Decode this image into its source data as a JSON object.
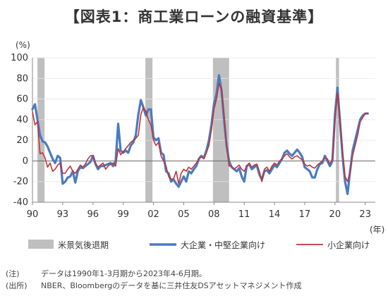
{
  "title": "【図表1：商工業ローンの融資基準】",
  "notes": [
    {
      "tag": "(注)",
      "text": "データは1990年1-3月期から2023年4-6月期。"
    },
    {
      "tag": "(出所)",
      "text": "NBER、Bloombergのデータを基に三井住友DSアセットマネジメント作成"
    }
  ],
  "colors": {
    "large": "#4a7bbf",
    "small": "#c0333a",
    "recession": "#bfbfbf"
  },
  "chart_data": {
    "type": "line",
    "y_unit": "(%)",
    "x_unit": "(年)",
    "ylim": [
      -40,
      100
    ],
    "yticks": [
      -40,
      -20,
      0,
      20,
      40,
      60,
      80,
      100
    ],
    "xlim": [
      1990.0,
      2024.0
    ],
    "xticks": [
      {
        "label": "90",
        "x": 1990.0
      },
      {
        "label": "93",
        "x": 1993.0
      },
      {
        "label": "96",
        "x": 1996.0
      },
      {
        "label": "99",
        "x": 1999.0
      },
      {
        "label": "02",
        "x": 2002.0
      },
      {
        "label": "05",
        "x": 2005.0
      },
      {
        "label": "08",
        "x": 2008.0
      },
      {
        "label": "11",
        "x": 2011.0
      },
      {
        "label": "14",
        "x": 2014.0
      },
      {
        "label": "17",
        "x": 2017.0
      },
      {
        "label": "20",
        "x": 2020.0
      },
      {
        "label": "23",
        "x": 2023.0
      }
    ],
    "recessions": [
      {
        "name": "1990-1991",
        "start": 1990.5,
        "end": 1991.2
      },
      {
        "name": "2001",
        "start": 2001.2,
        "end": 2001.9
      },
      {
        "name": "2007-2009",
        "start": 2007.9,
        "end": 2009.5
      },
      {
        "name": "2020",
        "start": 2020.1,
        "end": 2020.4
      }
    ],
    "legend": {
      "recession": "米景気後退期",
      "large": "大企業・中堅企業向け",
      "small": "小企業向け"
    },
    "series": [
      {
        "key": "large",
        "name": "大企業・中堅企業向け",
        "points": [
          [
            1990.0,
            50
          ],
          [
            1990.25,
            55
          ],
          [
            1990.5,
            40
          ],
          [
            1990.75,
            25
          ],
          [
            1991.0,
            19
          ],
          [
            1991.25,
            18
          ],
          [
            1991.5,
            14
          ],
          [
            1991.75,
            8
          ],
          [
            1992.0,
            2
          ],
          [
            1992.25,
            -2
          ],
          [
            1992.5,
            5
          ],
          [
            1992.75,
            3
          ],
          [
            1993.0,
            -22
          ],
          [
            1993.25,
            -20
          ],
          [
            1993.5,
            -16
          ],
          [
            1993.75,
            -15
          ],
          [
            1994.0,
            -10
          ],
          [
            1994.25,
            -21
          ],
          [
            1994.5,
            -10
          ],
          [
            1994.75,
            -6
          ],
          [
            1995.0,
            -7
          ],
          [
            1995.25,
            -5
          ],
          [
            1995.5,
            -3
          ],
          [
            1995.75,
            -1
          ],
          [
            1996.0,
            5
          ],
          [
            1996.25,
            -3
          ],
          [
            1996.5,
            -8
          ],
          [
            1996.75,
            -5
          ],
          [
            1997.0,
            -5
          ],
          [
            1997.25,
            -4
          ],
          [
            1997.5,
            -3
          ],
          [
            1997.75,
            -2
          ],
          [
            1998.0,
            -5
          ],
          [
            1998.25,
            0
          ],
          [
            1998.5,
            36
          ],
          [
            1998.75,
            10
          ],
          [
            1999.0,
            8
          ],
          [
            1999.25,
            10
          ],
          [
            1999.5,
            8
          ],
          [
            1999.75,
            15
          ],
          [
            2000.0,
            18
          ],
          [
            2000.25,
            25
          ],
          [
            2000.5,
            45
          ],
          [
            2000.75,
            59
          ],
          [
            2001.0,
            52
          ],
          [
            2001.25,
            44
          ],
          [
            2001.5,
            50
          ],
          [
            2001.75,
            50
          ],
          [
            2002.0,
            23
          ],
          [
            2002.25,
            20
          ],
          [
            2002.5,
            22
          ],
          [
            2002.75,
            8
          ],
          [
            2003.0,
            6
          ],
          [
            2003.25,
            -10
          ],
          [
            2003.5,
            -12
          ],
          [
            2003.75,
            -20
          ],
          [
            2004.0,
            -18
          ],
          [
            2004.25,
            -22
          ],
          [
            2004.5,
            -25
          ],
          [
            2004.75,
            -20
          ],
          [
            2005.0,
            -15
          ],
          [
            2005.25,
            -20
          ],
          [
            2005.5,
            -10
          ],
          [
            2005.75,
            -12
          ],
          [
            2006.0,
            -8
          ],
          [
            2006.25,
            -5
          ],
          [
            2006.5,
            2
          ],
          [
            2006.75,
            5
          ],
          [
            2007.0,
            3
          ],
          [
            2007.25,
            10
          ],
          [
            2007.5,
            20
          ],
          [
            2007.75,
            35
          ],
          [
            2008.0,
            55
          ],
          [
            2008.25,
            65
          ],
          [
            2008.5,
            83
          ],
          [
            2008.75,
            68
          ],
          [
            2009.0,
            40
          ],
          [
            2009.25,
            15
          ],
          [
            2009.5,
            0
          ],
          [
            2009.75,
            -6
          ],
          [
            2010.0,
            -8
          ],
          [
            2010.25,
            -10
          ],
          [
            2010.5,
            -7
          ],
          [
            2010.75,
            -15
          ],
          [
            2011.0,
            -20
          ],
          [
            2011.25,
            -5
          ],
          [
            2011.5,
            -3
          ],
          [
            2011.75,
            -8
          ],
          [
            2012.0,
            -6
          ],
          [
            2012.25,
            -4
          ],
          [
            2012.5,
            -13
          ],
          [
            2012.75,
            -18
          ],
          [
            2013.0,
            -10
          ],
          [
            2013.25,
            -9
          ],
          [
            2013.5,
            -12
          ],
          [
            2013.75,
            -8
          ],
          [
            2014.0,
            -4
          ],
          [
            2014.25,
            -6
          ],
          [
            2014.5,
            -2
          ],
          [
            2014.75,
            2
          ],
          [
            2015.0,
            8
          ],
          [
            2015.25,
            10
          ],
          [
            2015.5,
            7
          ],
          [
            2015.75,
            5
          ],
          [
            2016.0,
            8
          ],
          [
            2016.25,
            11
          ],
          [
            2016.5,
            8
          ],
          [
            2016.75,
            4
          ],
          [
            2017.0,
            -6
          ],
          [
            2017.25,
            -8
          ],
          [
            2017.5,
            -10
          ],
          [
            2017.75,
            -16
          ],
          [
            2018.0,
            -16
          ],
          [
            2018.25,
            -8
          ],
          [
            2018.5,
            -3
          ],
          [
            2018.75,
            -2
          ],
          [
            2019.0,
            5
          ],
          [
            2019.25,
            0
          ],
          [
            2019.5,
            -5
          ],
          [
            2019.75,
            0
          ],
          [
            2020.0,
            45
          ],
          [
            2020.25,
            71
          ],
          [
            2020.5,
            38
          ],
          [
            2020.75,
            5
          ],
          [
            2021.0,
            -20
          ],
          [
            2021.25,
            -32
          ],
          [
            2021.5,
            -10
          ],
          [
            2021.75,
            10
          ],
          [
            2022.0,
            20
          ],
          [
            2022.25,
            30
          ],
          [
            2022.5,
            40
          ],
          [
            2022.75,
            44
          ],
          [
            2023.0,
            46
          ],
          [
            2023.25,
            46
          ]
        ]
      },
      {
        "key": "small",
        "name": "小企業向け",
        "points": [
          [
            1990.0,
            48
          ],
          [
            1990.25,
            35
          ],
          [
            1990.5,
            38
          ],
          [
            1990.75,
            7
          ],
          [
            1991.0,
            8
          ],
          [
            1991.25,
            3
          ],
          [
            1991.5,
            -6
          ],
          [
            1991.75,
            -2
          ],
          [
            1992.0,
            -10
          ],
          [
            1992.25,
            -8
          ],
          [
            1992.5,
            -4
          ],
          [
            1992.75,
            -2
          ],
          [
            1993.0,
            -12
          ],
          [
            1993.25,
            -12
          ],
          [
            1993.5,
            -8
          ],
          [
            1993.75,
            -5
          ],
          [
            1994.0,
            -10
          ],
          [
            1994.25,
            -12
          ],
          [
            1994.5,
            -8
          ],
          [
            1994.75,
            -4
          ],
          [
            1995.0,
            -6
          ],
          [
            1995.25,
            -3
          ],
          [
            1995.5,
            2
          ],
          [
            1995.75,
            5
          ],
          [
            1996.0,
            5
          ],
          [
            1996.25,
            -2
          ],
          [
            1996.5,
            -6
          ],
          [
            1996.75,
            -4
          ],
          [
            1997.0,
            -2
          ],
          [
            1997.25,
            -8
          ],
          [
            1997.5,
            -5
          ],
          [
            1997.75,
            -3
          ],
          [
            1998.0,
            -2
          ],
          [
            1998.25,
            -5
          ],
          [
            1998.5,
            12
          ],
          [
            1998.75,
            6
          ],
          [
            1999.0,
            9
          ],
          [
            1999.25,
            12
          ],
          [
            1999.5,
            15
          ],
          [
            1999.75,
            18
          ],
          [
            2000.0,
            20
          ],
          [
            2000.25,
            22
          ],
          [
            2000.5,
            25
          ],
          [
            2000.75,
            45
          ],
          [
            2001.0,
            52
          ],
          [
            2001.25,
            48
          ],
          [
            2001.5,
            40
          ],
          [
            2001.75,
            35
          ],
          [
            2002.0,
            20
          ],
          [
            2002.25,
            15
          ],
          [
            2002.5,
            18
          ],
          [
            2002.75,
            5
          ],
          [
            2003.0,
            0
          ],
          [
            2003.25,
            -5
          ],
          [
            2003.5,
            -15
          ],
          [
            2003.75,
            -18
          ],
          [
            2004.0,
            -17
          ],
          [
            2004.25,
            -10
          ],
          [
            2004.5,
            -22
          ],
          [
            2004.75,
            -12
          ],
          [
            2005.0,
            -8
          ],
          [
            2005.25,
            -10
          ],
          [
            2005.5,
            -6
          ],
          [
            2005.75,
            -8
          ],
          [
            2006.0,
            -5
          ],
          [
            2006.25,
            -2
          ],
          [
            2006.5,
            2
          ],
          [
            2006.75,
            4
          ],
          [
            2007.0,
            2
          ],
          [
            2007.25,
            8
          ],
          [
            2007.5,
            15
          ],
          [
            2007.75,
            30
          ],
          [
            2008.0,
            50
          ],
          [
            2008.25,
            60
          ],
          [
            2008.5,
            75
          ],
          [
            2008.75,
            70
          ],
          [
            2009.0,
            45
          ],
          [
            2009.25,
            15
          ],
          [
            2009.5,
            -5
          ],
          [
            2009.75,
            -5
          ],
          [
            2010.0,
            -8
          ],
          [
            2010.25,
            -6
          ],
          [
            2010.5,
            -4
          ],
          [
            2010.75,
            -8
          ],
          [
            2011.0,
            -10
          ],
          [
            2011.25,
            -5
          ],
          [
            2011.5,
            -2
          ],
          [
            2011.75,
            -6
          ],
          [
            2012.0,
            -4
          ],
          [
            2012.25,
            -3
          ],
          [
            2012.5,
            -10
          ],
          [
            2012.75,
            -20
          ],
          [
            2013.0,
            -8
          ],
          [
            2013.25,
            -6
          ],
          [
            2013.5,
            -10
          ],
          [
            2013.75,
            -5
          ],
          [
            2014.0,
            -2
          ],
          [
            2014.25,
            -4
          ],
          [
            2014.5,
            0
          ],
          [
            2014.75,
            2
          ],
          [
            2015.0,
            5
          ],
          [
            2015.25,
            7
          ],
          [
            2015.5,
            4
          ],
          [
            2015.75,
            2
          ],
          [
            2016.0,
            4
          ],
          [
            2016.25,
            5
          ],
          [
            2016.5,
            3
          ],
          [
            2016.75,
            1
          ],
          [
            2017.0,
            -3
          ],
          [
            2017.25,
            -5
          ],
          [
            2017.5,
            -4
          ],
          [
            2017.75,
            -6
          ],
          [
            2018.0,
            -7
          ],
          [
            2018.25,
            -4
          ],
          [
            2018.5,
            -2
          ],
          [
            2018.75,
            0
          ],
          [
            2019.0,
            3
          ],
          [
            2019.25,
            2
          ],
          [
            2019.5,
            -3
          ],
          [
            2019.75,
            2
          ],
          [
            2020.0,
            40
          ],
          [
            2020.25,
            66
          ],
          [
            2020.5,
            40
          ],
          [
            2020.75,
            10
          ],
          [
            2021.0,
            -15
          ],
          [
            2021.25,
            -20
          ],
          [
            2021.5,
            -10
          ],
          [
            2021.75,
            5
          ],
          [
            2022.0,
            15
          ],
          [
            2022.25,
            25
          ],
          [
            2022.5,
            38
          ],
          [
            2022.75,
            42
          ],
          [
            2023.0,
            46
          ],
          [
            2023.25,
            46
          ]
        ]
      }
    ]
  }
}
